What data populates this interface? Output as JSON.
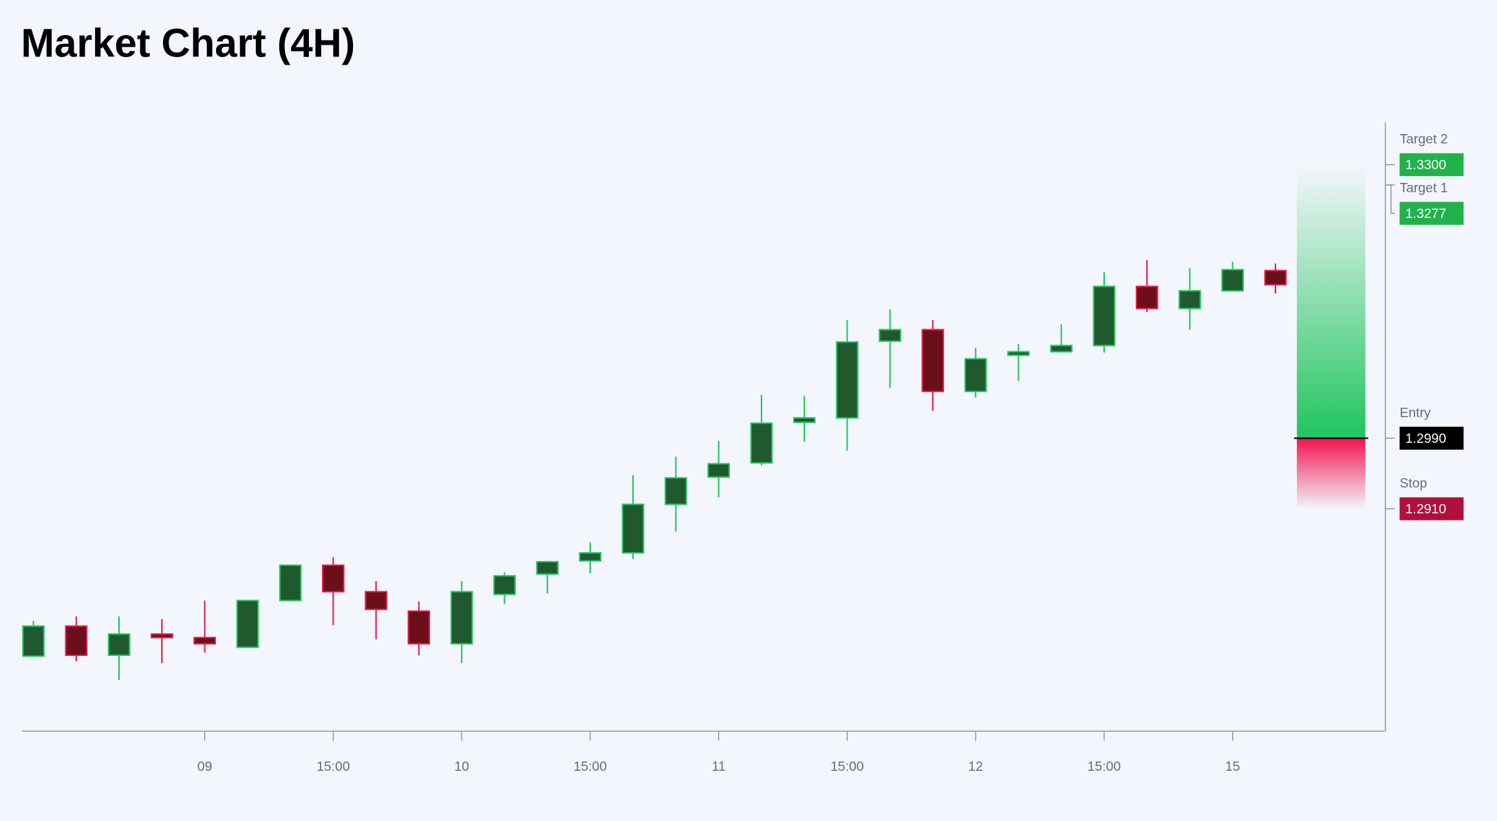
{
  "chart_data": {
    "type": "candlestick",
    "title": "Market Chart (4H)",
    "categories": [
      null,
      null,
      null,
      null,
      "09",
      null,
      null,
      "15:00",
      null,
      null,
      "10",
      null,
      null,
      "15:00",
      null,
      null,
      "11",
      null,
      null,
      "15:00",
      null,
      null,
      "12",
      null,
      null,
      "15:00",
      null,
      null,
      "15",
      null
    ],
    "open": [
      1.2743,
      1.2777,
      1.2744,
      1.2768,
      1.2764,
      1.2753,
      1.2806,
      1.2846,
      1.2816,
      1.2794,
      1.2757,
      1.2813,
      1.2836,
      1.2851,
      1.286,
      1.2915,
      1.2946,
      1.2962,
      1.3008,
      1.3013,
      1.31,
      1.3113,
      1.3043,
      1.3084,
      1.3088,
      1.3095,
      1.3162,
      1.3137,
      1.3157,
      1.318
    ],
    "high": [
      1.2783,
      1.2788,
      1.2788,
      1.2785,
      1.2806,
      1.2806,
      1.2847,
      1.2855,
      1.2828,
      1.2805,
      1.2828,
      1.2838,
      1.2851,
      1.2872,
      1.2948,
      1.2969,
      1.2987,
      1.3039,
      1.3038,
      1.3124,
      1.3136,
      1.3124,
      1.3092,
      1.3097,
      1.3119,
      1.3178,
      1.3192,
      1.3183,
      1.319,
      1.3188
    ],
    "low": [
      1.2743,
      1.2737,
      1.2716,
      1.2735,
      1.2747,
      1.2753,
      1.2805,
      1.2778,
      1.2762,
      1.2744,
      1.2735,
      1.2802,
      1.2814,
      1.2837,
      1.2853,
      1.2884,
      1.2923,
      1.2959,
      1.2986,
      1.2976,
      1.3047,
      1.3021,
      1.3036,
      1.3055,
      1.3087,
      1.3087,
      1.3133,
      1.3113,
      1.3156,
      1.3154
    ],
    "close": [
      1.2777,
      1.2744,
      1.2768,
      1.2764,
      1.2757,
      1.2806,
      1.2846,
      1.2816,
      1.2796,
      1.2757,
      1.2816,
      1.2834,
      1.285,
      1.286,
      1.2915,
      1.2945,
      1.2961,
      1.3007,
      1.3013,
      1.3099,
      1.3113,
      1.3043,
      1.308,
      1.3088,
      1.3095,
      1.3162,
      1.3137,
      1.3157,
      1.3181,
      1.3164
    ],
    "up_color": "#22c55e",
    "down_color": "#e11d48",
    "ylim": [
      1.2658,
      1.3348
    ],
    "levels": [
      {
        "name": "Target 2",
        "price": {
          "value": 1.33,
          "label": "1.3300"
        },
        "color": "#22b14c"
      },
      {
        "name": "Target 1",
        "price": {
          "value": 1.3277,
          "label": "1.3277"
        },
        "color": "#22b14c"
      },
      {
        "name": "Entry",
        "price": {
          "value": 1.299,
          "label": "1.2990"
        },
        "color": "#000000"
      },
      {
        "name": "Stop",
        "price": {
          "value": 1.291,
          "label": "1.2910"
        },
        "color": "#b0103a"
      }
    ]
  }
}
